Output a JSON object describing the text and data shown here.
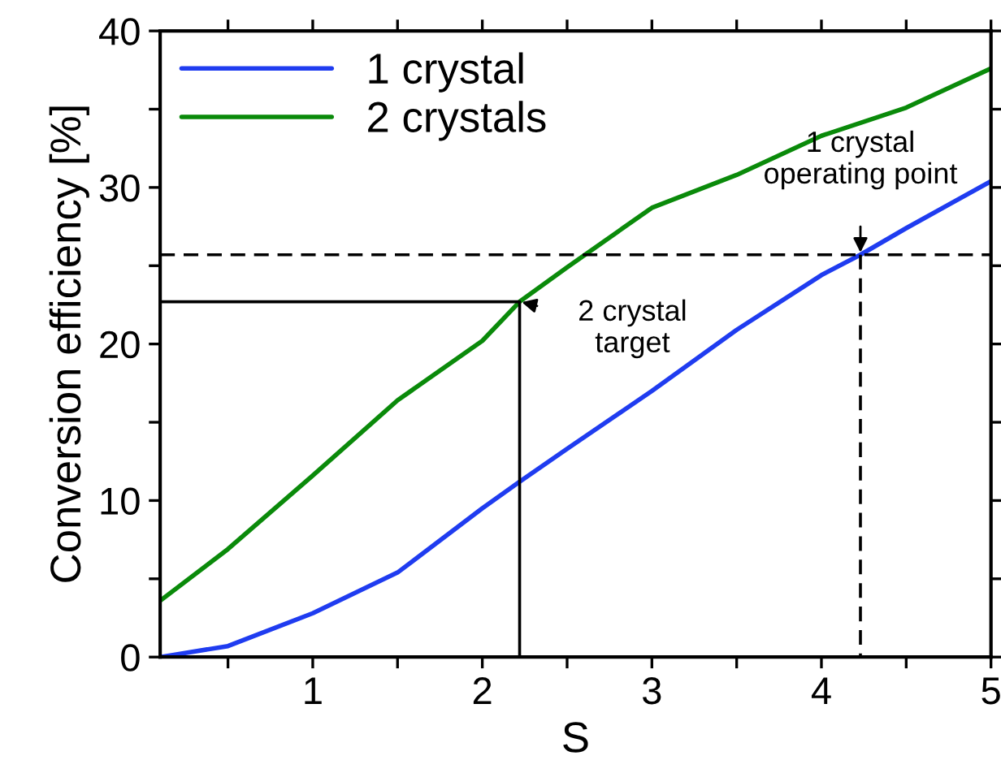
{
  "chart_data": {
    "type": "line",
    "xlabel": "S",
    "ylabel": "Conversion efficiency [%]",
    "xlim": [
      0.1,
      5
    ],
    "xticks": [
      {
        "value": 0.5,
        "label": null
      },
      1,
      {
        "value": 1.5,
        "label": null
      },
      2,
      {
        "value": 2.5,
        "label": null
      },
      3,
      {
        "value": 3.5,
        "label": null
      },
      4,
      {
        "value": 4.5,
        "label": null
      },
      5
    ],
    "ylim": [
      0,
      40
    ],
    "yticks": [
      0,
      {
        "value": 5,
        "label": null
      },
      10,
      {
        "value": 15,
        "label": null
      },
      20,
      {
        "value": 25,
        "label": null
      },
      30,
      {
        "value": 35,
        "label": null
      },
      40
    ],
    "series": [
      {
        "name": "1 crystal",
        "color": "#1f3cf0",
        "x": [
          0.1,
          0.5,
          1,
          1.5,
          2,
          2.22,
          2.5,
          3,
          3.5,
          4,
          4.23,
          4.5,
          5
        ],
        "values": [
          0,
          0.7,
          2.8,
          5.4,
          9.5,
          11.2,
          13.3,
          17.0,
          20.9,
          24.4,
          25.7,
          27.4,
          30.4
        ]
      },
      {
        "name": "2 crystals",
        "color": "#0a8a0a",
        "x": [
          0.1,
          0.5,
          1,
          1.5,
          2,
          2.22,
          2.5,
          3,
          3.5,
          4,
          4.5,
          5
        ],
        "values": [
          3.6,
          6.9,
          11.6,
          16.4,
          20.2,
          22.7,
          24.9,
          28.7,
          30.8,
          33.3,
          35.1,
          37.6
        ]
      },
      {
        "color": "#000000",
        "line_style": "solid",
        "x": [
          0.1,
          2.22,
          2.22
        ],
        "values": [
          22.7,
          22.7,
          0
        ]
      },
      {
        "color": "#000000",
        "line_style": "dashed",
        "x": [
          0.1,
          5
        ],
        "values": [
          25.7,
          25.7
        ]
      },
      {
        "color": "#000000",
        "line_style": "dashed",
        "x": [
          4.23,
          4.23
        ],
        "values": [
          25.7,
          0
        ]
      }
    ],
    "annotations": [
      {
        "text": "2 crystal\ntarget",
        "x": 2.22,
        "y": 22.7
      },
      {
        "text": "1 crystal\noperating point",
        "x": 4.23,
        "y": 25.7
      }
    ],
    "legend": "top left",
    "grid": false,
    "marker": "none"
  }
}
